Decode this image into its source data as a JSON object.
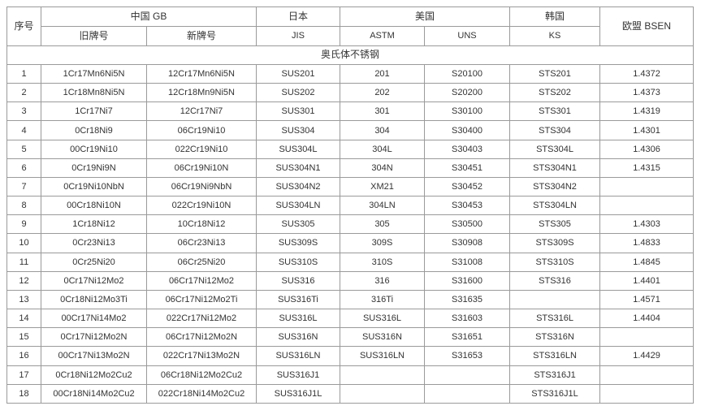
{
  "table": {
    "header": {
      "serial": "序号",
      "china_gb": "中国 GB",
      "china_old": "旧牌号",
      "china_new": "新牌号",
      "japan": "日本",
      "jis": "JIS",
      "usa": "美国",
      "astm": "ASTM",
      "uns": "UNS",
      "korea": "韩国",
      "ks": "KS",
      "eu_bsen": "欧盟 BSEN"
    },
    "section_title": "奥氏体不锈钢",
    "columns_order": [
      "serial",
      "gb_old",
      "gb_new",
      "jis",
      "astm",
      "uns",
      "ks",
      "bsen"
    ],
    "rows": [
      [
        "1",
        "1Cr17Mn6Ni5N",
        "12Cr17Mn6Ni5N",
        "SUS201",
        "201",
        "S20100",
        "STS201",
        "1.4372"
      ],
      [
        "2",
        "1Cr18Mn8Ni5N",
        "12Cr18Mn9Ni5N",
        "SUS202",
        "202",
        "S20200",
        "STS202",
        "1.4373"
      ],
      [
        "3",
        "1Cr17Ni7",
        "12Cr17Ni7",
        "SUS301",
        "301",
        "S30100",
        "STS301",
        "1.4319"
      ],
      [
        "4",
        "0Cr18Ni9",
        "06Cr19Ni10",
        "SUS304",
        "304",
        "S30400",
        "STS304",
        "1.4301"
      ],
      [
        "5",
        "00Cr19Ni10",
        "022Cr19Ni10",
        "SUS304L",
        "304L",
        "S30403",
        "STS304L",
        "1.4306"
      ],
      [
        "6",
        "0Cr19Ni9N",
        "06Cr19Ni10N",
        "SUS304N1",
        "304N",
        "S30451",
        "STS304N1",
        "1.4315"
      ],
      [
        "7",
        "0Cr19Ni10NbN",
        "06Cr19Ni9NbN",
        "SUS304N2",
        "XM21",
        "S30452",
        "STS304N2",
        ""
      ],
      [
        "8",
        "00Cr18Ni10N",
        "022Cr19Ni10N",
        "SUS304LN",
        "304LN",
        "S30453",
        "STS304LN",
        ""
      ],
      [
        "9",
        "1Cr18Ni12",
        "10Cr18Ni12",
        "SUS305",
        "305",
        "S30500",
        "STS305",
        "1.4303"
      ],
      [
        "10",
        "0Cr23Ni13",
        "06Cr23Ni13",
        "SUS309S",
        "309S",
        "S30908",
        "STS309S",
        "1.4833"
      ],
      [
        "11",
        "0Cr25Ni20",
        "06Cr25Ni20",
        "SUS310S",
        "310S",
        "S31008",
        "STS310S",
        "1.4845"
      ],
      [
        "12",
        "0Cr17Ni12Mo2",
        "06Cr17Ni12Mo2",
        "SUS316",
        "316",
        "S31600",
        "STS316",
        "1.4401"
      ],
      [
        "13",
        "0Cr18Ni12Mo3Ti",
        "06Cr17Ni12Mo2Ti",
        "SUS316Ti",
        "316Ti",
        "S31635",
        "",
        "1.4571"
      ],
      [
        "14",
        "00Cr17Ni14Mo2",
        "022Cr17Ni12Mo2",
        "SUS316L",
        "SUS316L",
        "S31603",
        "STS316L",
        "1.4404"
      ],
      [
        "15",
        "0Cr17Ni12Mo2N",
        "06Cr17Ni12Mo2N",
        "SUS316N",
        "SUS316N",
        "S31651",
        "STS316N",
        ""
      ],
      [
        "16",
        "00Cr17Ni13Mo2N",
        "022Cr17Ni13Mo2N",
        "SUS316LN",
        "SUS316LN",
        "S31653",
        "STS316LN",
        "1.4429"
      ],
      [
        "17",
        "0Cr18Ni12Mo2Cu2",
        "06Cr18Ni12Mo2Cu2",
        "SUS316J1",
        "",
        "",
        "STS316J1",
        ""
      ],
      [
        "18",
        "00Cr18Ni14Mo2Cu2",
        "022Cr18Ni14Mo2Cu2",
        "SUS316J1L",
        "",
        "",
        "STS316J1L",
        ""
      ]
    ]
  }
}
